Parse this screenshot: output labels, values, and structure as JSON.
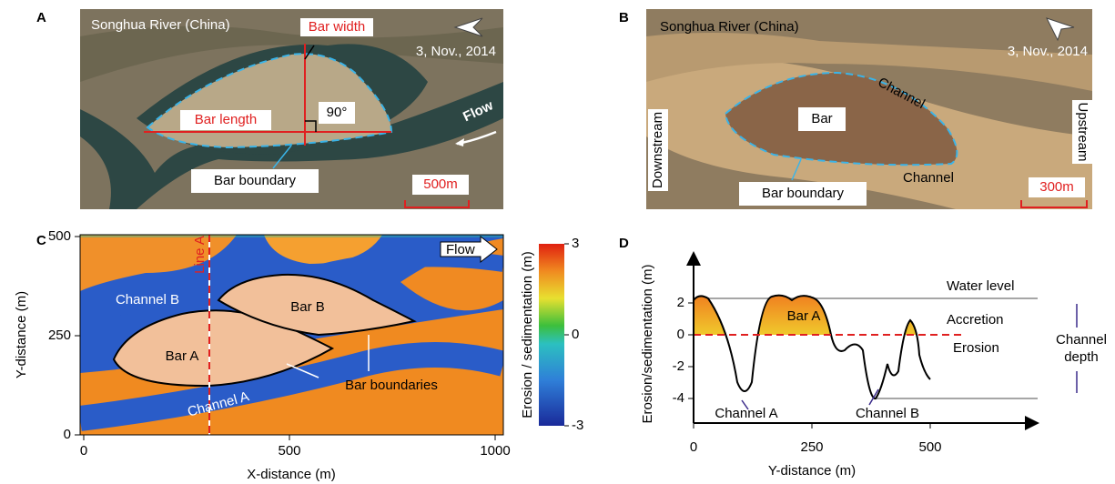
{
  "panel_a": {
    "label": "A",
    "place": "Songhua River (China)",
    "bar_width": "Bar width",
    "date": "3, Nov., 2014",
    "flow": "Flow",
    "bar_length": "Bar length",
    "angle": "90°",
    "bar_boundary": "Bar boundary",
    "scale": "500m"
  },
  "panel_b": {
    "label": "B",
    "place": "Songhua River (China)",
    "date": "3, Nov., 2014",
    "channels": [
      "Channel",
      "Channel"
    ],
    "bar": "Bar",
    "downstream": "Downstream",
    "upstream": "Upstream",
    "bar_boundary": "Bar boundary",
    "scale": "300m"
  },
  "panel_c": {
    "label": "C",
    "line": "Line A",
    "flow": "Flow",
    "channel_b": "Channel B",
    "bar_b": "Bar B",
    "bar_a": "Bar A",
    "bar_boundaries": "Bar boundaries",
    "channel_a": "Channel A",
    "xlabel": "X-distance (m)",
    "ylabel": "Y-distance (m)",
    "xticks": [
      0,
      500,
      1000
    ],
    "yticks": [
      0,
      250,
      500
    ],
    "colorbar_label": "Erosion / sedimentation (m)",
    "colorbar_ticks": [
      -3,
      0,
      3
    ]
  },
  "panel_d": {
    "label": "D",
    "water_level": "Water level",
    "bar_a": "Bar A",
    "accretion": "Accretion",
    "erosion": "Erosion",
    "channel_depth": [
      "Channel",
      "depth"
    ],
    "channel_a": "Channel A",
    "channel_b": "Channel B",
    "ylabel": "Erosion/sedimentation (m)",
    "xlabel": "Y-distance (m)",
    "yticks": [
      -4,
      -2,
      0,
      2
    ],
    "xticks": [
      0,
      250,
      500
    ]
  }
}
